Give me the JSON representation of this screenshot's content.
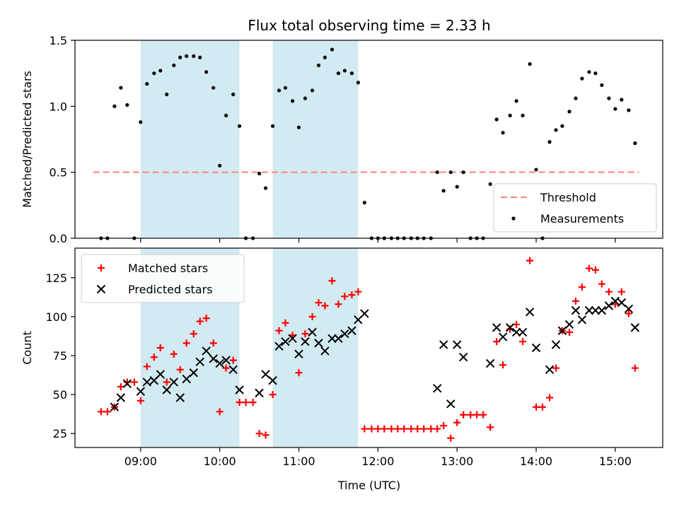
{
  "figure": {
    "title": "Flux total observing time = 2.33 h",
    "xlabel": "Time (UTC)"
  },
  "colors": {
    "shade": "#add8e6",
    "threshold": "#ff7f7f",
    "measurement": "#000000",
    "matched": "#ff0000",
    "predicted": "#000000",
    "axes": "#000000"
  },
  "chart_data": [
    {
      "type": "scatter",
      "ylabel": "Matched/Predicted stars",
      "ylim": [
        0,
        1.5
      ],
      "yticks": [
        0,
        0.5,
        1.0,
        1.5
      ],
      "ytick_labels": [
        "0.0",
        "0.5",
        "1.0",
        "1.5"
      ],
      "xlim": [
        8.17,
        15.6
      ],
      "xticks": [
        9,
        10,
        11,
        12,
        13,
        14,
        15
      ],
      "xtick_labels": [],
      "grid": false,
      "legend_position": "lower-right",
      "shaded_spans": [
        [
          9.0,
          10.25
        ],
        [
          10.67,
          11.75
        ]
      ],
      "threshold": {
        "name": "Threshold",
        "y": 0.5,
        "x_range": [
          8.4,
          15.3
        ]
      },
      "series": [
        {
          "name": "Measurements",
          "marker": "dot",
          "points": [
            [
              8.5,
              0
            ],
            [
              8.58,
              0
            ],
            [
              8.67,
              1.0
            ],
            [
              8.75,
              1.14
            ],
            [
              8.83,
              1.01
            ],
            [
              8.92,
              0
            ],
            [
              9.0,
              0.88
            ],
            [
              9.08,
              1.17
            ],
            [
              9.17,
              1.25
            ],
            [
              9.25,
              1.27
            ],
            [
              9.33,
              1.09
            ],
            [
              9.42,
              1.31
            ],
            [
              9.5,
              1.37
            ],
            [
              9.58,
              1.38
            ],
            [
              9.67,
              1.38
            ],
            [
              9.75,
              1.37
            ],
            [
              9.83,
              1.26
            ],
            [
              9.92,
              1.14
            ],
            [
              10.0,
              0.55
            ],
            [
              10.08,
              0.93
            ],
            [
              10.17,
              1.09
            ],
            [
              10.25,
              0.85
            ],
            [
              10.33,
              0
            ],
            [
              10.42,
              0
            ],
            [
              10.5,
              0.49
            ],
            [
              10.58,
              0.38
            ],
            [
              10.67,
              0.85
            ],
            [
              10.75,
              1.12
            ],
            [
              10.83,
              1.14
            ],
            [
              10.92,
              1.04
            ],
            [
              11.0,
              0.84
            ],
            [
              11.08,
              1.06
            ],
            [
              11.17,
              1.12
            ],
            [
              11.25,
              1.31
            ],
            [
              11.33,
              1.37
            ],
            [
              11.42,
              1.43
            ],
            [
              11.5,
              1.25
            ],
            [
              11.58,
              1.27
            ],
            [
              11.67,
              1.25
            ],
            [
              11.75,
              1.18
            ],
            [
              11.83,
              0.27
            ],
            [
              11.92,
              0
            ],
            [
              12.0,
              0
            ],
            [
              12.08,
              0
            ],
            [
              12.17,
              0
            ],
            [
              12.25,
              0
            ],
            [
              12.33,
              0
            ],
            [
              12.42,
              0
            ],
            [
              12.5,
              0
            ],
            [
              12.58,
              0
            ],
            [
              12.67,
              0
            ],
            [
              12.75,
              0.5
            ],
            [
              12.83,
              0.36
            ],
            [
              12.92,
              0.5
            ],
            [
              13.0,
              0.39
            ],
            [
              13.08,
              0.5
            ],
            [
              13.17,
              0
            ],
            [
              13.25,
              0
            ],
            [
              13.33,
              0
            ],
            [
              13.42,
              0.41
            ],
            [
              13.5,
              0.9
            ],
            [
              13.58,
              0.8
            ],
            [
              13.67,
              0.93
            ],
            [
              13.75,
              1.04
            ],
            [
              13.83,
              0.93
            ],
            [
              13.92,
              1.32
            ],
            [
              14.0,
              0.52
            ],
            [
              14.08,
              0
            ],
            [
              14.17,
              0.73
            ],
            [
              14.25,
              0.82
            ],
            [
              14.33,
              0.85
            ],
            [
              14.42,
              0.96
            ],
            [
              14.5,
              1.06
            ],
            [
              14.58,
              1.21
            ],
            [
              14.67,
              1.26
            ],
            [
              14.75,
              1.25
            ],
            [
              14.83,
              1.16
            ],
            [
              14.92,
              1.06
            ],
            [
              15.0,
              0.98
            ],
            [
              15.08,
              1.05
            ],
            [
              15.17,
              0.97
            ],
            [
              15.25,
              0.72
            ]
          ]
        }
      ]
    },
    {
      "type": "scatter",
      "ylabel": "Count",
      "ylim": [
        16,
        144
      ],
      "yticks": [
        25,
        50,
        75,
        100,
        125
      ],
      "ytick_labels": [
        "25",
        "50",
        "75",
        "100",
        "125"
      ],
      "xlim": [
        8.17,
        15.6
      ],
      "xticks": [
        9,
        10,
        11,
        12,
        13,
        14,
        15
      ],
      "xtick_labels": [
        "09:00",
        "10:00",
        "11:00",
        "12:00",
        "13:00",
        "14:00",
        "15:00"
      ],
      "grid": false,
      "legend_position": "upper-left",
      "shaded_spans": [
        [
          9.0,
          10.25
        ],
        [
          10.67,
          11.75
        ]
      ],
      "series": [
        {
          "name": "Matched stars",
          "marker": "plus",
          "points": [
            [
              8.5,
              39
            ],
            [
              8.58,
              39
            ],
            [
              8.67,
              42
            ],
            [
              8.75,
              55
            ],
            [
              8.83,
              58
            ],
            [
              8.92,
              58
            ],
            [
              9.0,
              46
            ],
            [
              9.08,
              68
            ],
            [
              9.17,
              74
            ],
            [
              9.25,
              80
            ],
            [
              9.33,
              58
            ],
            [
              9.42,
              76
            ],
            [
              9.5,
              66
            ],
            [
              9.58,
              83
            ],
            [
              9.67,
              89
            ],
            [
              9.75,
              97
            ],
            [
              9.83,
              99
            ],
            [
              9.92,
              83
            ],
            [
              10.0,
              39
            ],
            [
              10.08,
              67
            ],
            [
              10.17,
              72
            ],
            [
              10.25,
              45
            ],
            [
              10.33,
              45
            ],
            [
              10.42,
              45
            ],
            [
              10.5,
              25
            ],
            [
              10.58,
              24
            ],
            [
              10.67,
              50
            ],
            [
              10.75,
              91
            ],
            [
              10.83,
              96
            ],
            [
              10.92,
              88
            ],
            [
              11.0,
              64
            ],
            [
              11.08,
              89
            ],
            [
              11.17,
              100
            ],
            [
              11.25,
              109
            ],
            [
              11.33,
              107
            ],
            [
              11.42,
              123
            ],
            [
              11.5,
              108
            ],
            [
              11.58,
              113
            ],
            [
              11.67,
              114
            ],
            [
              11.75,
              116
            ],
            [
              11.83,
              28
            ],
            [
              11.92,
              28
            ],
            [
              12.0,
              28
            ],
            [
              12.08,
              28
            ],
            [
              12.17,
              28
            ],
            [
              12.25,
              28
            ],
            [
              12.33,
              28
            ],
            [
              12.42,
              28
            ],
            [
              12.5,
              28
            ],
            [
              12.58,
              28
            ],
            [
              12.67,
              28
            ],
            [
              12.75,
              28
            ],
            [
              12.83,
              30
            ],
            [
              12.92,
              22
            ],
            [
              13.0,
              32
            ],
            [
              13.08,
              37
            ],
            [
              13.17,
              37
            ],
            [
              13.25,
              37
            ],
            [
              13.33,
              37
            ],
            [
              13.42,
              29
            ],
            [
              13.5,
              84
            ],
            [
              13.58,
              69
            ],
            [
              13.67,
              92
            ],
            [
              13.75,
              95
            ],
            [
              13.83,
              84
            ],
            [
              13.92,
              136
            ],
            [
              14.0,
              42
            ],
            [
              14.08,
              42
            ],
            [
              14.17,
              48
            ],
            [
              14.25,
              67
            ],
            [
              14.33,
              91
            ],
            [
              14.42,
              90
            ],
            [
              14.5,
              110
            ],
            [
              14.58,
              119
            ],
            [
              14.67,
              131
            ],
            [
              14.75,
              130
            ],
            [
              14.83,
              121
            ],
            [
              14.92,
              116
            ],
            [
              15.0,
              108
            ],
            [
              15.08,
              116
            ],
            [
              15.17,
              102
            ],
            [
              15.25,
              67
            ]
          ]
        },
        {
          "name": "Predicted stars",
          "marker": "x",
          "points": [
            [
              8.67,
              42
            ],
            [
              8.75,
              48
            ],
            [
              8.83,
              57
            ],
            [
              9.0,
              52
            ],
            [
              9.08,
              58
            ],
            [
              9.17,
              59
            ],
            [
              9.25,
              63
            ],
            [
              9.33,
              53
            ],
            [
              9.42,
              58
            ],
            [
              9.5,
              48
            ],
            [
              9.58,
              60
            ],
            [
              9.67,
              64
            ],
            [
              9.75,
              71
            ],
            [
              9.83,
              78
            ],
            [
              9.92,
              73
            ],
            [
              10.0,
              70
            ],
            [
              10.08,
              72
            ],
            [
              10.17,
              66
            ],
            [
              10.25,
              53
            ],
            [
              10.5,
              51
            ],
            [
              10.58,
              63
            ],
            [
              10.67,
              59
            ],
            [
              10.75,
              81
            ],
            [
              10.83,
              84
            ],
            [
              10.92,
              86
            ],
            [
              11.0,
              76
            ],
            [
              11.08,
              84
            ],
            [
              11.17,
              90
            ],
            [
              11.25,
              83
            ],
            [
              11.33,
              78
            ],
            [
              11.42,
              86
            ],
            [
              11.5,
              86
            ],
            [
              11.58,
              89
            ],
            [
              11.67,
              91
            ],
            [
              11.75,
              98
            ],
            [
              11.83,
              102
            ],
            [
              12.75,
              54
            ],
            [
              12.83,
              82
            ],
            [
              12.92,
              44
            ],
            [
              13.0,
              82
            ],
            [
              13.08,
              74
            ],
            [
              13.42,
              70
            ],
            [
              13.5,
              93
            ],
            [
              13.58,
              87
            ],
            [
              13.67,
              93
            ],
            [
              13.75,
              90
            ],
            [
              13.83,
              90
            ],
            [
              13.92,
              103
            ],
            [
              14.0,
              80
            ],
            [
              14.17,
              66
            ],
            [
              14.25,
              82
            ],
            [
              14.33,
              91
            ],
            [
              14.42,
              95
            ],
            [
              14.5,
              104
            ],
            [
              14.58,
              98
            ],
            [
              14.67,
              104
            ],
            [
              14.75,
              104
            ],
            [
              14.83,
              104
            ],
            [
              14.92,
              107
            ],
            [
              15.0,
              110
            ],
            [
              15.08,
              109
            ],
            [
              15.17,
              105
            ],
            [
              15.25,
              93
            ]
          ]
        }
      ]
    }
  ]
}
